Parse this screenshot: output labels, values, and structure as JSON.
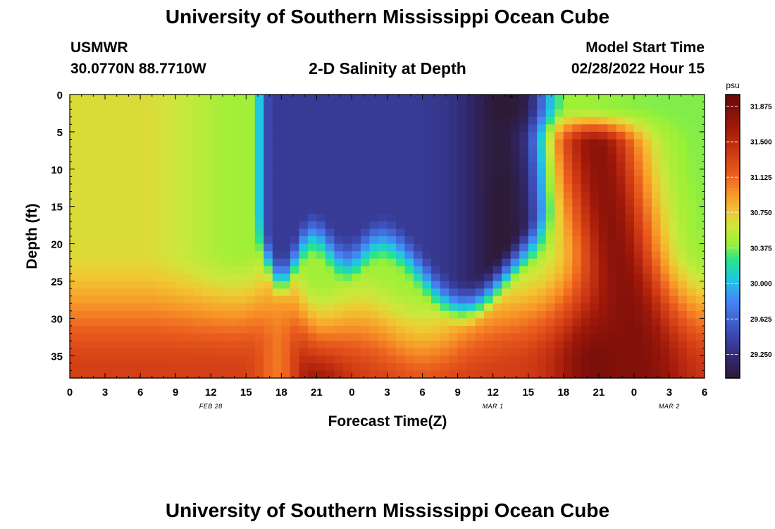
{
  "page": {
    "title_top": "University of Southern Mississippi Ocean Cube",
    "title_bottom": "University of Southern Mississippi Ocean Cube",
    "station_name": "USMWR",
    "station_coords": "30.0770N  88.7710W",
    "plot_title": "2-D Salinity at Depth",
    "model_label": "Model Start Time",
    "model_time": "02/28/2022 Hour 15"
  },
  "chart_data": {
    "type": "heatmap",
    "title": "2-D Salinity at Depth",
    "xlabel": "Forecast Time(Z)",
    "ylabel": "Depth (ft)",
    "x_range_hours": [
      0,
      54
    ],
    "y_range_ft": [
      0,
      38
    ],
    "x_ticks": [
      "0",
      "3",
      "6",
      "9",
      "12",
      "15",
      "18",
      "21",
      "0",
      "3",
      "6",
      "9",
      "12",
      "15",
      "18",
      "21",
      "0",
      "3",
      "6"
    ],
    "date_labels": [
      {
        "label": "FEB 28",
        "hour": 12
      },
      {
        "label": "MAR 1",
        "hour": 36
      },
      {
        "label": "MAR 2",
        "hour": 51
      }
    ],
    "y_ticks": [
      0,
      5,
      10,
      15,
      20,
      25,
      30,
      35
    ],
    "colorbar": {
      "unit": "psu",
      "min": 29.0,
      "max": 32.0,
      "tick_values": [
        31.875,
        31.5,
        31.125,
        30.75,
        30.375,
        30.0,
        29.625,
        29.25
      ],
      "tick_labels": [
        "31.875",
        "31.500",
        "31.125",
        "30.750",
        "30.375",
        "30.000",
        "29.625",
        "29.250"
      ]
    },
    "grid": {
      "nx": 72,
      "ny": 38,
      "model": "estimated salinity field (psu) from image: surface ~30.7 psu at 0-9h, freshening to ~30.4 at 12-15h; low-salinity lens 29.0-29.4 psu from 16h to ~40h between 0 and ~28 ft with minimum ~29.0 psu near 37h at surface; high-salinity bottom water 31.0-31.9 psu below ~28 ft; salt dome 31.5-31.9 psu around 45h reaching to ~4 ft; recovery to ~30.3-30.5 psu after 50h"
    }
  }
}
